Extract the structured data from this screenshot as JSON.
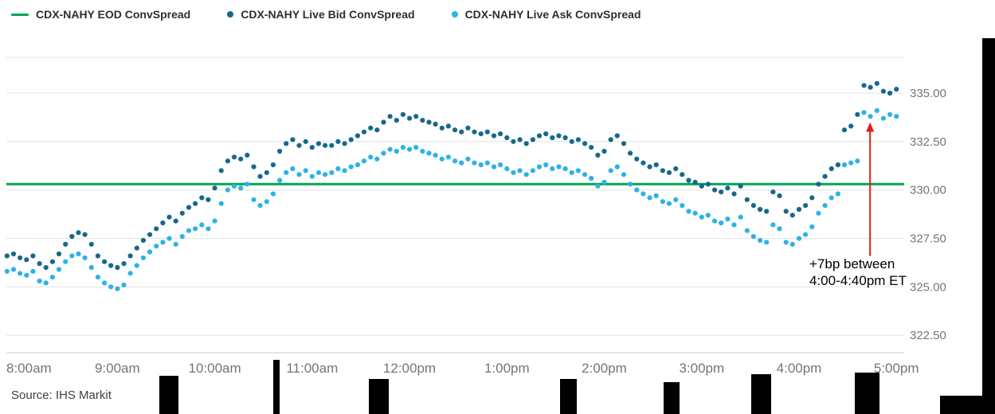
{
  "legend": {
    "items": [
      {
        "label": "CDX-NAHY EOD ConvSpread",
        "marker": "line",
        "color": "#00a551"
      },
      {
        "label": "CDX-NAHY Live Bid ConvSpread",
        "marker": "dot",
        "color": "#16688c"
      },
      {
        "label": "CDX-NAHY Live Ask ConvSpread",
        "marker": "dot",
        "color": "#2cb3e5"
      }
    ]
  },
  "source": "Source: IHS Markit",
  "chart_data": {
    "type": "scatter",
    "title": "",
    "grid": "horizontal",
    "legend_position": "top-left",
    "x_axis": {
      "unit": "time of day (ET)",
      "xlim": [
        7.86,
        17.08
      ],
      "ticks": [
        {
          "hour": 8,
          "label": "8:00am"
        },
        {
          "hour": 9,
          "label": "9:00am"
        },
        {
          "hour": 10,
          "label": "10:00am"
        },
        {
          "hour": 11,
          "label": "11:00am"
        },
        {
          "hour": 12,
          "label": "12:00pm"
        },
        {
          "hour": 13,
          "label": "1:00pm"
        },
        {
          "hour": 14,
          "label": "2:00pm"
        },
        {
          "hour": 15,
          "label": "3:00pm"
        },
        {
          "hour": 16,
          "label": "4:00pm"
        },
        {
          "hour": 17,
          "label": "5:00pm"
        }
      ]
    },
    "y_axis": {
      "ylim": [
        321.6,
        336.85
      ],
      "ticks": [
        {
          "value": 335.0,
          "label": "335.00"
        },
        {
          "value": 332.5,
          "label": "332.50"
        },
        {
          "value": 330.0,
          "label": "330.00"
        },
        {
          "value": 327.5,
          "label": "327.50"
        },
        {
          "value": 325.0,
          "label": "325.00"
        },
        {
          "value": 322.5,
          "label": "322.50"
        }
      ]
    },
    "sample_start_hour": 7.8667,
    "sample_step_minutes": 4,
    "series": [
      {
        "name": "CDX-NAHY EOD ConvSpread",
        "kind": "hline",
        "value": 330.3,
        "color": "#00a551"
      },
      {
        "name": "CDX-NAHY Live Bid ConvSpread",
        "kind": "scatter",
        "color": "#16688c",
        "values": [
          326.6,
          326.7,
          326.5,
          326.4,
          326.6,
          326.2,
          326.0,
          326.3,
          326.7,
          327.2,
          327.6,
          327.8,
          327.7,
          327.2,
          326.6,
          326.3,
          326.1,
          326.0,
          326.2,
          326.6,
          327.0,
          327.4,
          327.7,
          328.0,
          328.3,
          328.6,
          328.4,
          328.8,
          329.1,
          329.3,
          329.6,
          329.5,
          330.1,
          331.0,
          331.5,
          331.7,
          331.6,
          331.8,
          331.2,
          330.7,
          330.9,
          331.3,
          332.0,
          332.4,
          332.6,
          332.3,
          332.5,
          332.2,
          332.4,
          332.3,
          332.3,
          332.5,
          332.4,
          332.6,
          332.8,
          333.0,
          333.2,
          333.1,
          333.5,
          333.8,
          333.6,
          333.9,
          333.7,
          333.8,
          333.6,
          333.5,
          333.4,
          333.2,
          333.3,
          333.1,
          333.0,
          333.2,
          333.0,
          332.9,
          333.0,
          332.8,
          332.9,
          332.7,
          332.5,
          332.6,
          332.4,
          332.6,
          332.8,
          332.9,
          332.7,
          332.8,
          332.7,
          332.5,
          332.6,
          332.4,
          332.2,
          331.8,
          332.0,
          332.6,
          332.8,
          332.4,
          331.9,
          331.6,
          331.4,
          331.2,
          331.3,
          331.0,
          330.9,
          331.1,
          330.8,
          330.5,
          330.4,
          330.2,
          330.3,
          330.0,
          329.9,
          330.1,
          329.8,
          330.2,
          329.5,
          329.2,
          329.0,
          328.9,
          329.9,
          329.7,
          328.9,
          328.7,
          329.0,
          329.2,
          329.6,
          330.3,
          330.7,
          331.1,
          331.3,
          333.1,
          333.3,
          333.9,
          335.4,
          335.3,
          335.5,
          335.1,
          335.0,
          335.2
        ]
      },
      {
        "name": "CDX-NAHY Live Ask ConvSpread",
        "kind": "scatter",
        "color": "#2cb3e5",
        "values": [
          325.8,
          325.9,
          325.7,
          325.6,
          325.8,
          325.3,
          325.2,
          325.5,
          325.9,
          326.3,
          326.6,
          326.7,
          326.5,
          326.0,
          325.5,
          325.2,
          325.0,
          324.9,
          325.1,
          325.7,
          326.1,
          326.5,
          326.8,
          327.1,
          327.3,
          327.5,
          327.2,
          327.6,
          327.9,
          328.0,
          328.2,
          328.0,
          328.4,
          329.3,
          330.0,
          330.2,
          330.1,
          330.3,
          329.5,
          329.2,
          329.4,
          329.8,
          330.5,
          330.9,
          331.1,
          330.8,
          331.0,
          330.7,
          330.9,
          330.8,
          330.9,
          331.1,
          331.0,
          331.2,
          331.3,
          331.5,
          331.7,
          331.6,
          331.9,
          332.1,
          332.0,
          332.2,
          332.1,
          332.2,
          332.0,
          331.9,
          331.8,
          331.6,
          331.7,
          331.5,
          331.4,
          331.6,
          331.4,
          331.3,
          331.4,
          331.2,
          331.3,
          331.1,
          330.9,
          331.0,
          330.8,
          331.0,
          331.2,
          331.3,
          331.1,
          331.2,
          331.1,
          330.9,
          331.0,
          330.8,
          330.6,
          330.2,
          330.4,
          331.0,
          331.2,
          330.8,
          330.3,
          330.0,
          329.8,
          329.6,
          329.7,
          329.4,
          329.3,
          329.5,
          329.2,
          328.9,
          328.8,
          328.6,
          328.7,
          328.4,
          328.3,
          328.5,
          328.2,
          328.6,
          327.9,
          327.6,
          327.4,
          327.3,
          328.2,
          328.0,
          327.3,
          327.2,
          327.5,
          327.7,
          328.1,
          328.8,
          329.2,
          329.6,
          329.8,
          331.3,
          331.4,
          331.5,
          334.0,
          333.8,
          334.1,
          333.7,
          333.9,
          333.8
        ]
      }
    ],
    "annotation": {
      "line1": "+7bp between",
      "line2": "4:00-4:40pm ET",
      "arrow": {
        "hour": 16.73,
        "from_value": 326.6,
        "to_value": 333.5,
        "color": "#e01e1e"
      }
    }
  }
}
